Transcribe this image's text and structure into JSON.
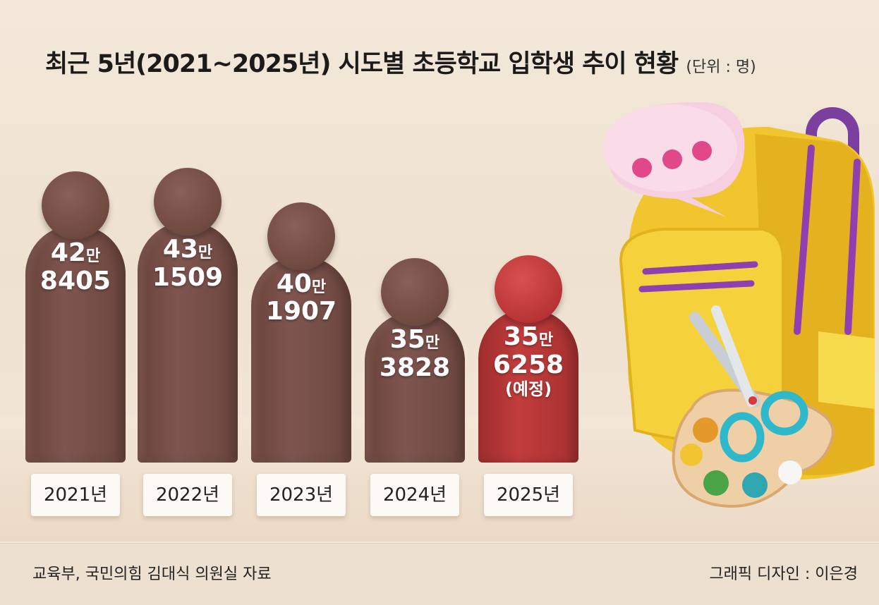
{
  "title": "최근 5년(2021~2025년) 시도별 초등학교 입학생 추이 현황",
  "unit": "(단위 : 명)",
  "source": "교육부, 국민의힘 김대식 의원실 자료",
  "credit": "그래픽 디자인 : 이은경",
  "colors": {
    "normal": "#7a4f49",
    "highlight": "#c23c3c"
  },
  "chart_data": {
    "type": "bar",
    "title": "최근 5년(2021~2025년) 시도별 초등학교 입학생 추이 현황",
    "ylabel": "(단위 : 명)",
    "categories": [
      "2021년",
      "2022년",
      "2023년",
      "2024년",
      "2025년"
    ],
    "values": [
      428405,
      431509,
      401907,
      353828,
      356258
    ],
    "labels": [
      {
        "man": "42",
        "man_unit": "만",
        "rest": "8405",
        "note": ""
      },
      {
        "man": "43",
        "man_unit": "만",
        "rest": "1509",
        "note": ""
      },
      {
        "man": "40",
        "man_unit": "만",
        "rest": "1907",
        "note": ""
      },
      {
        "man": "35",
        "man_unit": "만",
        "rest": "3828",
        "note": ""
      },
      {
        "man": "35",
        "man_unit": "만",
        "rest": "6258",
        "note": "(예정)"
      }
    ],
    "highlight_index": 4
  },
  "illustration": {
    "icons": [
      "speech-bubble-icon",
      "backpack-icon",
      "scissors-icon",
      "palette-icon"
    ]
  }
}
